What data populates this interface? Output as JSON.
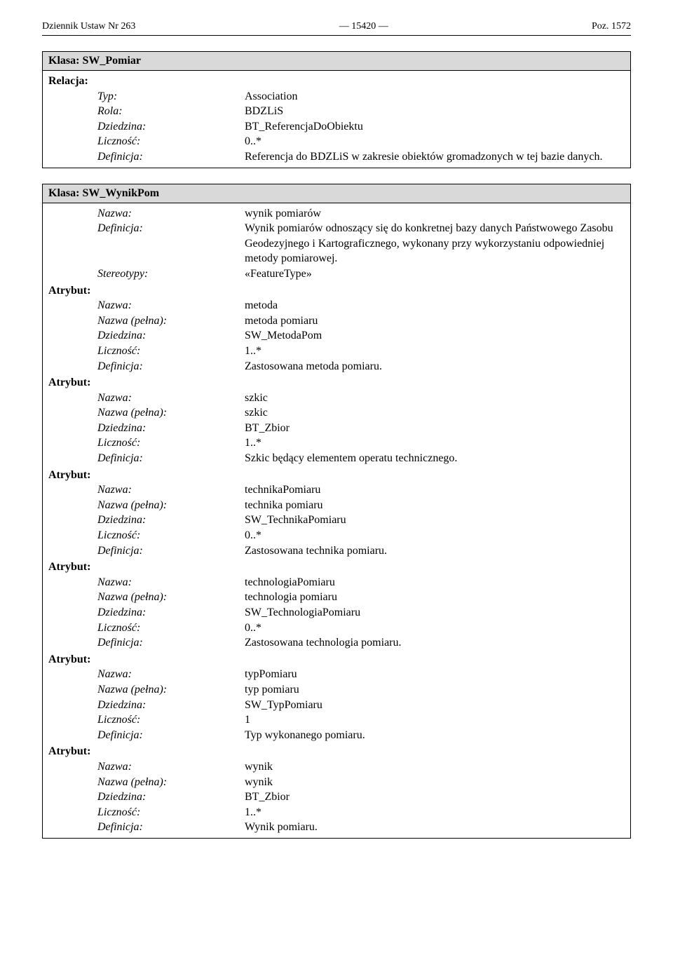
{
  "header": {
    "left": "Dziennik Ustaw Nr 263",
    "center": "— 15420 —",
    "right": "Poz. 1572"
  },
  "labels": {
    "klasa_prefix": "Klasa: ",
    "relacja": "Relacja:",
    "atrybut": "Atrybut:",
    "typ": "Typ:",
    "rola": "Rola:",
    "dziedzina": "Dziedzina:",
    "licznosc": "Liczność:",
    "definicja": "Definicja:",
    "nazwa": "Nazwa:",
    "nazwa_pelna": "Nazwa (pełna):",
    "stereotypy": "Stereotypy:"
  },
  "klasa1": {
    "name": "SW_Pomiar",
    "relacja": {
      "typ": "Association",
      "rola": "BDZLiS",
      "dziedzina": "BT_ReferencjaDoObiektu",
      "licznosc": "0..*",
      "definicja": "Referencja do BDZLiS w zakresie obiektów gromadzonych w tej bazie danych."
    }
  },
  "klasa2": {
    "name": "SW_WynikPom",
    "top": {
      "nazwa": "wynik pomiarów",
      "definicja": "Wynik pomiarów odnoszący się do konkretnej bazy danych Państwowego Zasobu Geodezyjnego i Kartograficznego, wykonany przy wykorzystaniu odpowiedniej metody pomiarowej.",
      "stereotypy": "«FeatureType»"
    },
    "attrs": [
      {
        "nazwa": "metoda",
        "nazwa_pelna": "metoda pomiaru",
        "dziedzina": "SW_MetodaPom",
        "licznosc": "1..*",
        "definicja": "Zastosowana metoda pomiaru."
      },
      {
        "nazwa": "szkic",
        "nazwa_pelna": "szkic",
        "dziedzina": "BT_Zbior",
        "licznosc": " 1..*",
        "definicja": "Szkic będący elementem operatu technicznego."
      },
      {
        "nazwa": "technikaPomiaru",
        "nazwa_pelna": "technika pomiaru",
        "dziedzina": "SW_TechnikaPomiaru",
        "licznosc": "0..*",
        "definicja": "Zastosowana technika pomiaru."
      },
      {
        "nazwa": "technologiaPomiaru",
        "nazwa_pelna": "technologia pomiaru",
        "dziedzina": "SW_TechnologiaPomiaru",
        "licznosc": "0..*",
        "definicja": "Zastosowana technologia pomiaru."
      },
      {
        "nazwa": "typPomiaru",
        "nazwa_pelna": "typ pomiaru",
        "dziedzina": "SW_TypPomiaru",
        "licznosc": "1",
        "definicja": "Typ wykonanego pomiaru."
      },
      {
        "nazwa": "wynik",
        "nazwa_pelna": "wynik",
        "dziedzina": "BT_Zbior",
        "licznosc": " 1..*",
        "definicja": "Wynik pomiaru."
      }
    ]
  }
}
